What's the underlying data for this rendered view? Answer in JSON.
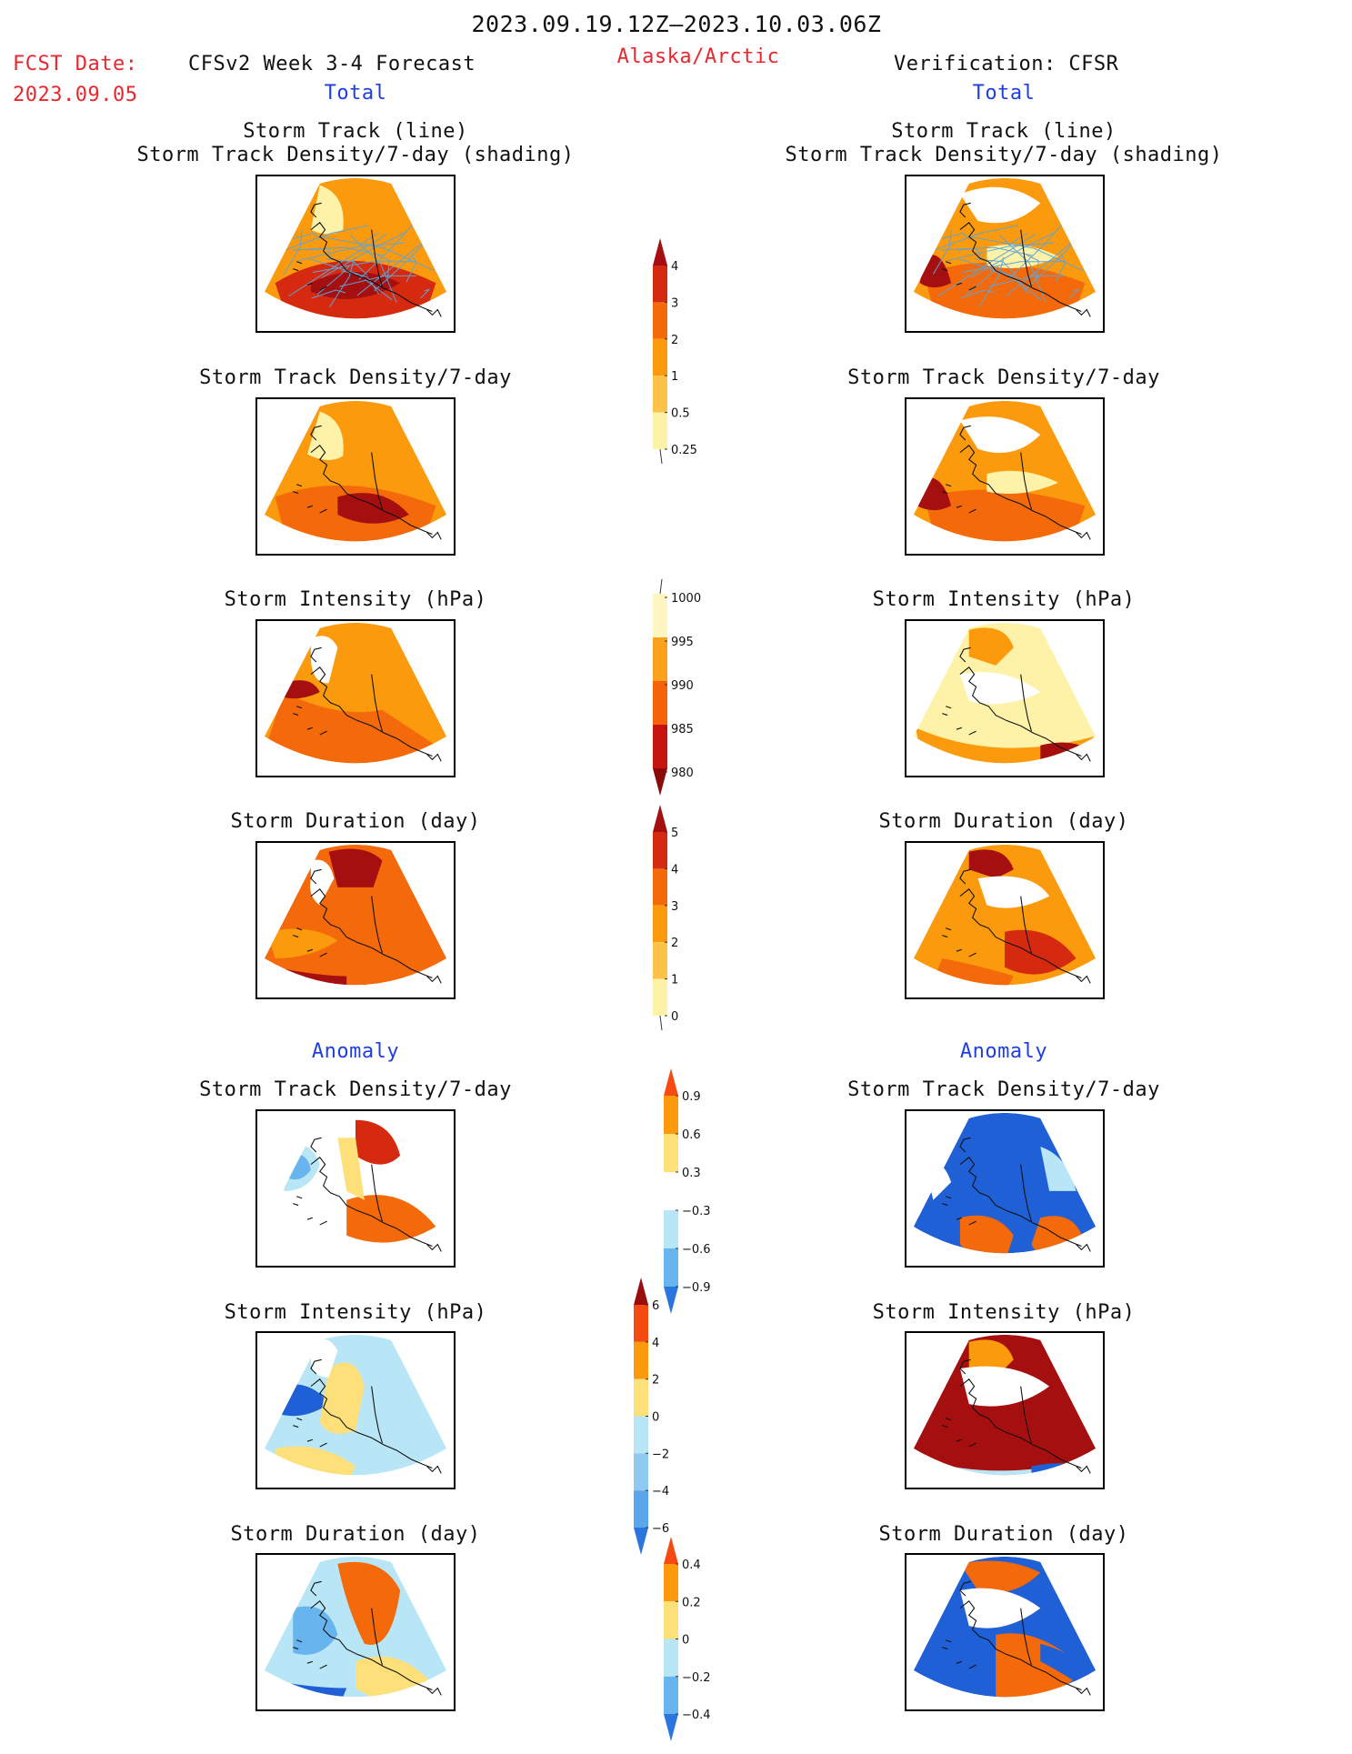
{
  "header": {
    "period": "2023.09.19.12Z–2023.10.03.06Z",
    "fcst_label": "FCST Date:",
    "fcst_date": "2023.09.05",
    "left_title": "CFSv2 Week 3-4 Forecast",
    "region": "Alaska/Arctic",
    "right_title": "Verification: CFSR",
    "left_section": "Total",
    "right_section": "Total",
    "anomaly_left": "Anomaly",
    "anomaly_right": "Anomaly"
  },
  "titles": {
    "track_line": "Storm Track (line)",
    "track_shading": "Storm Track Density/7-day (shading)",
    "density": "Storm Track Density/7-day",
    "intensity": "Storm Intensity (hPa)",
    "duration": "Storm Duration (day)"
  },
  "colorbars": {
    "density_total": {
      "ticks": [
        "4",
        "3",
        "2",
        "1",
        "0.5",
        "0.25"
      ],
      "colors": [
        "#a50f0f",
        "#d62a10",
        "#f46a0a",
        "#fb9a0c",
        "#fcc24a",
        "#fdf2a8"
      ]
    },
    "intensity_total": {
      "ticks": [
        "1000",
        "995",
        "990",
        "985",
        "980"
      ],
      "colors": [
        "#fdf6c0",
        "#fba11c",
        "#f4620c",
        "#c8140e",
        "#8b0b0b"
      ]
    },
    "duration_total": {
      "ticks": [
        "5",
        "4",
        "3",
        "2",
        "1",
        "0"
      ],
      "colors": [
        "#a50f0f",
        "#d62a10",
        "#f46a0a",
        "#fb9a0c",
        "#fcc24a",
        "#fdf2a8"
      ]
    },
    "density_anom": {
      "ticks": [
        "0.9",
        "0.6",
        "0.3",
        "−0.3",
        "−0.6",
        "−0.9"
      ],
      "colors": [
        "#f54a12",
        "#fb9a0c",
        "#fde07a",
        "#ffffff",
        "#b8e6f6",
        "#68b4ee",
        "#2a76de"
      ]
    },
    "intensity_anom": {
      "ticks": [
        "6",
        "4",
        "2",
        "0",
        "−2",
        "−4",
        "−6"
      ],
      "colors": [
        "#9b0d0d",
        "#f54a12",
        "#fb9a0c",
        "#fde07a",
        "#b8e6f6",
        "#8fcaf2",
        "#5aa6ec",
        "#2a76de"
      ]
    },
    "duration_anom": {
      "ticks": [
        "0.4",
        "0.2",
        "0",
        "−0.2",
        "−0.4"
      ],
      "colors": [
        "#f54a12",
        "#fb9a0c",
        "#fde07a",
        "#b8e6f6",
        "#68b4ee",
        "#2a76de"
      ]
    }
  },
  "map_colors": {
    "dark_red": "#a50f0f",
    "red": "#d62a10",
    "orange_red": "#f46a0a",
    "orange": "#fb9a0c",
    "light_orange": "#fcc24a",
    "pale_yellow": "#fdf2a8",
    "track_line": "#5fa4d6",
    "blue": "#1f60d6",
    "light_blue": "#b8e6f6"
  }
}
